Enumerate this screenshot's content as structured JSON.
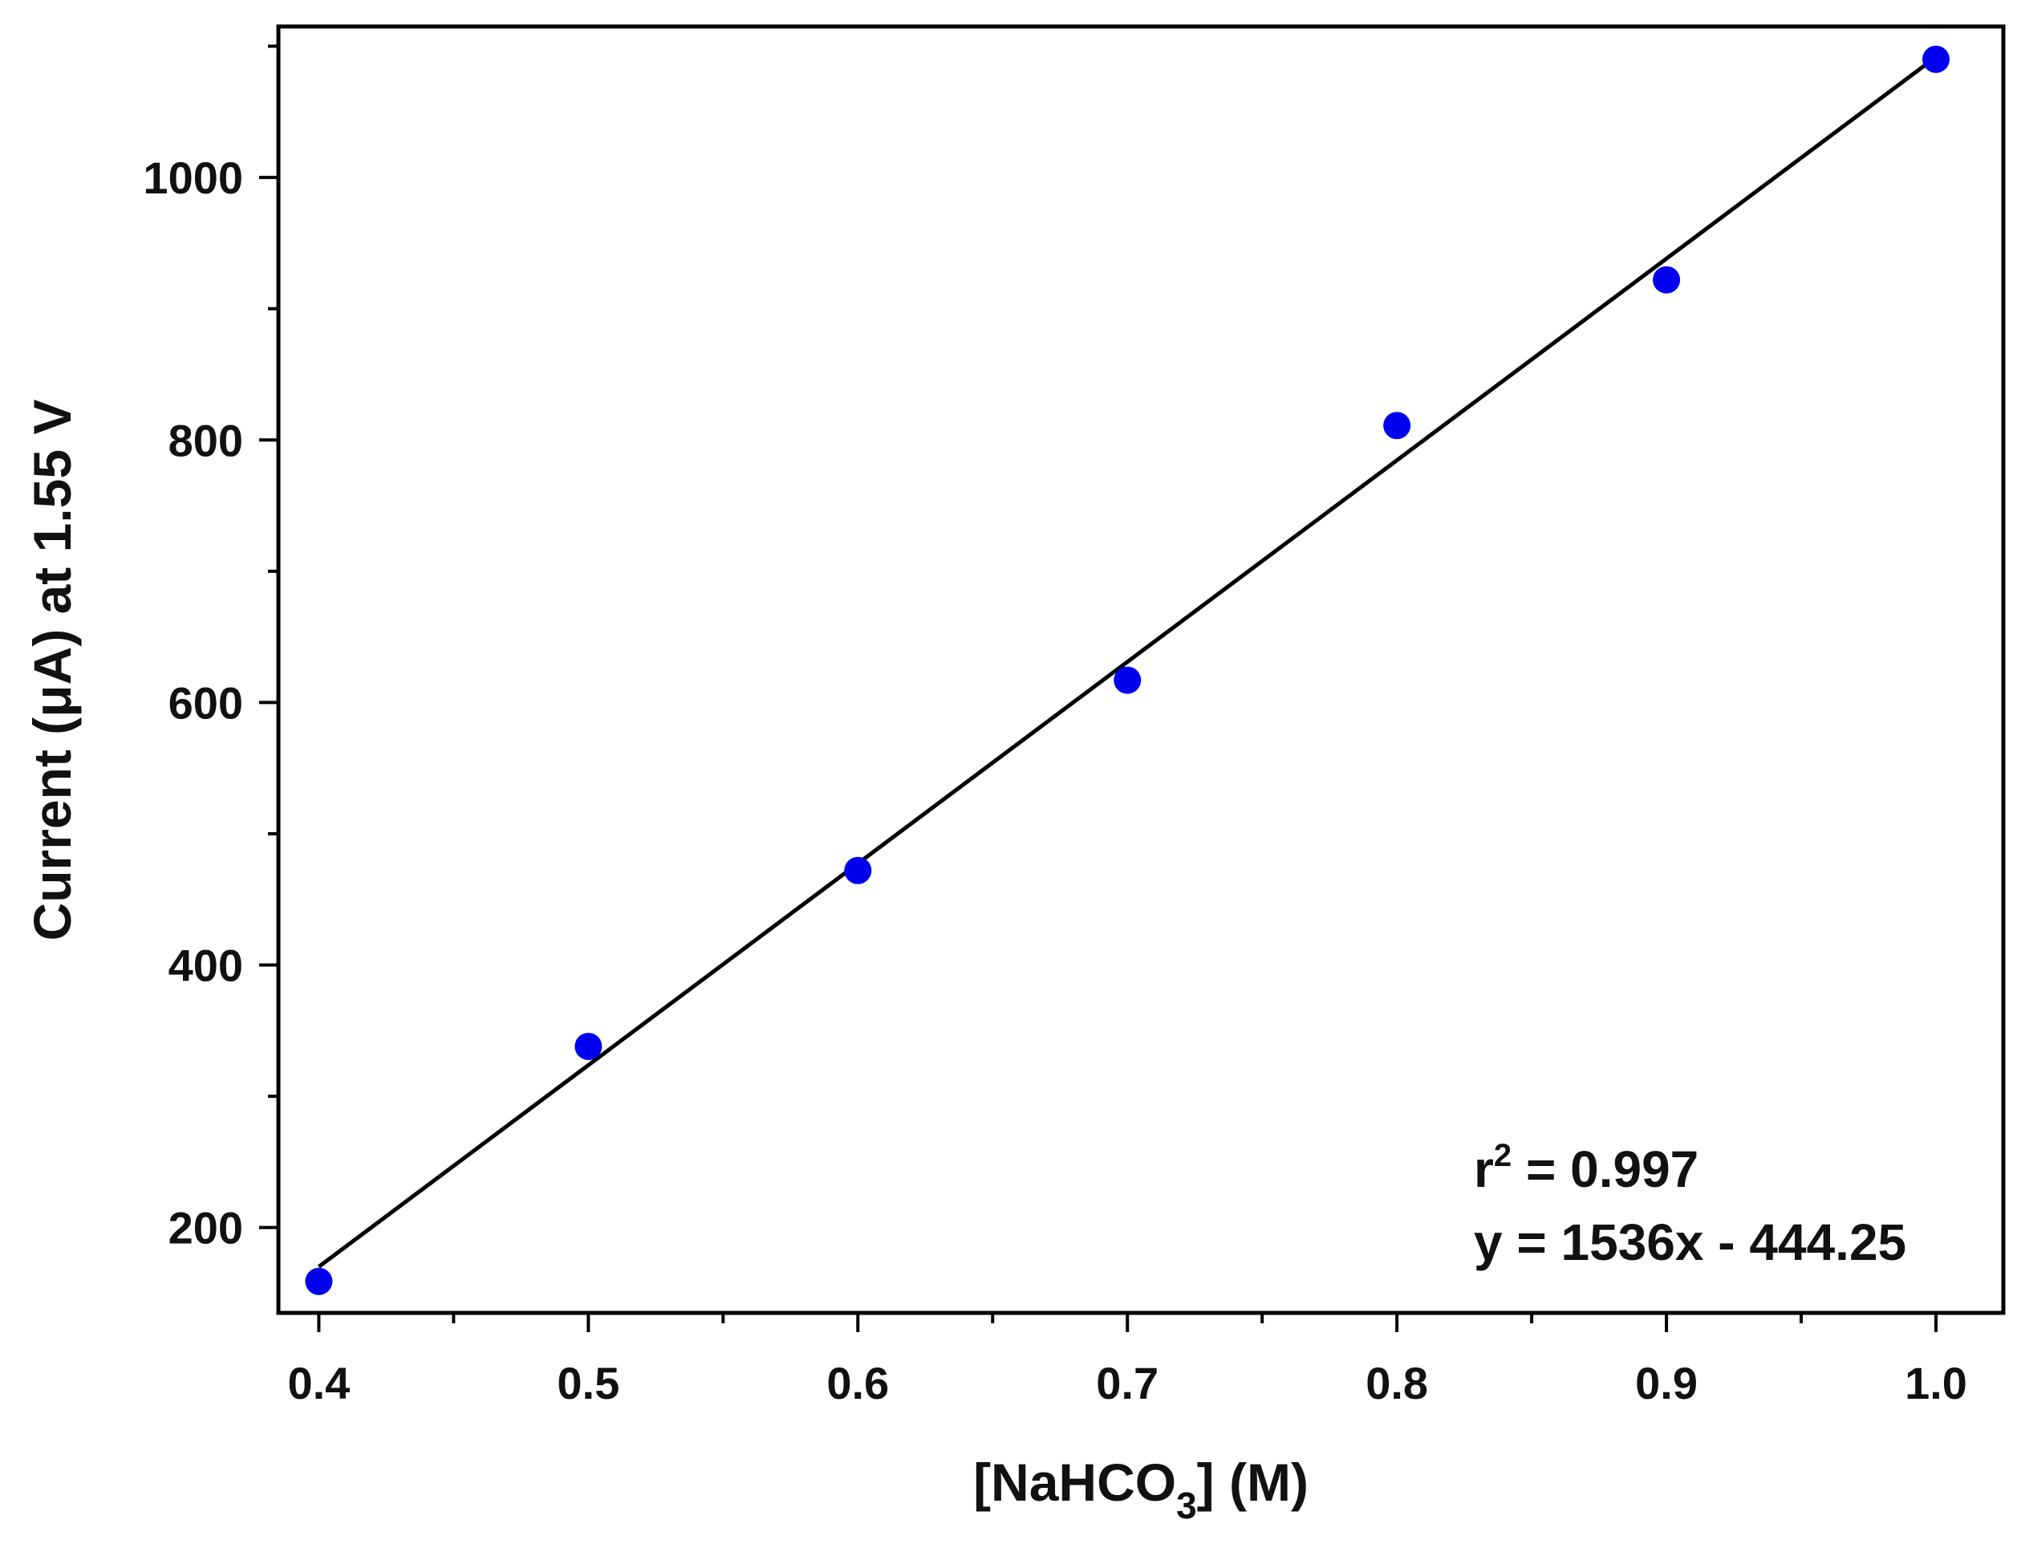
{
  "chart_data": {
    "type": "scatter",
    "title": "",
    "xlabel": "[NaHCO3] (M)",
    "xlabel_parts": {
      "open_bracket": "[NaHCO",
      "subscript": "3",
      "close": "] (M)"
    },
    "ylabel": "Current (μA) at 1.55 V",
    "xlim": [
      0.385,
      1.025
    ],
    "ylim": [
      135,
      1115
    ],
    "x_ticks": [
      0.4,
      0.5,
      0.6,
      0.7,
      0.8,
      0.9,
      1.0
    ],
    "x_tick_labels": [
      "0.4",
      "0.5",
      "0.6",
      "0.7",
      "0.8",
      "0.9",
      "1.0"
    ],
    "x_minor_ticks": [
      0.45,
      0.55,
      0.65,
      0.75,
      0.85,
      0.95
    ],
    "y_ticks": [
      200,
      400,
      600,
      800,
      1000
    ],
    "y_tick_labels": [
      "200",
      "400",
      "600",
      "800",
      "1000"
    ],
    "y_minor_ticks": [
      300,
      500,
      700,
      900,
      1100
    ],
    "series": [
      {
        "name": "data",
        "color": "#0000ee",
        "x": [
          0.4,
          0.5,
          0.6,
          0.7,
          0.8,
          0.9,
          1.0
        ],
        "y": [
          159,
          338,
          472,
          617,
          811,
          922,
          1090
        ]
      }
    ],
    "fit": {
      "slope": 1536,
      "intercept": -444.25,
      "x_range": [
        0.4,
        1.0
      ],
      "color": "#000000"
    },
    "annotations": {
      "r2_prefix": "r",
      "r2_superscript": "2",
      "r2_value": " = 0.997",
      "equation": "y = 1536x - 444.25"
    },
    "grid": false,
    "legend": "none"
  }
}
